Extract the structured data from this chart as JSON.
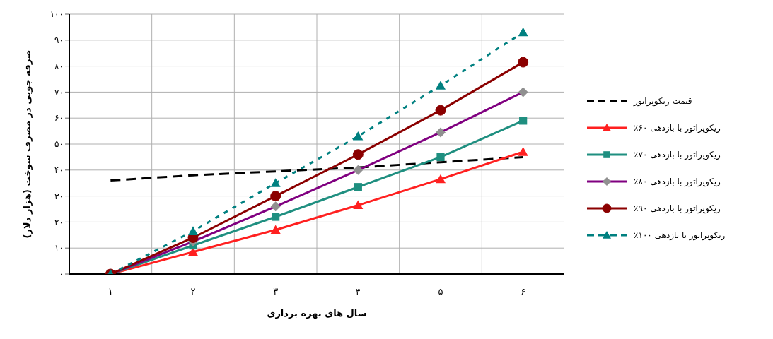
{
  "chart_data": {
    "type": "line",
    "xlabel": "سال های بهره برداری",
    "ylabel": "صرفه جویی در مصرف سوخت (هزار دلار)",
    "categories": [
      "۱",
      "۲",
      "۳",
      "۴",
      "۵",
      "۶"
    ],
    "ylim": [
      0,
      100
    ],
    "yticks": [
      {
        "value": 0,
        "label": "۰"
      },
      {
        "value": 10,
        "label": "۱۰"
      },
      {
        "value": 20,
        "label": "۲۰"
      },
      {
        "value": 30,
        "label": "۳۰"
      },
      {
        "value": 40,
        "label": "۴۰"
      },
      {
        "value": 50,
        "label": "۵۰"
      },
      {
        "value": 60,
        "label": "۶۰"
      },
      {
        "value": 70,
        "label": "۷۰"
      },
      {
        "value": 80,
        "label": "۸۰"
      },
      {
        "value": 90,
        "label": "۹۰"
      },
      {
        "value": 100,
        "label": "۱۰۰"
      }
    ],
    "grid": true,
    "legend": "right",
    "series": [
      {
        "name": "قیمت ریکوپراتور",
        "color": "#000000",
        "values": [
          36,
          38,
          39.5,
          41,
          43,
          45
        ],
        "marker": "none",
        "line_style": "dashed"
      },
      {
        "name": "ریکوپراتور با بازدهی ۶۰٪",
        "color": "#ff2020",
        "values": [
          0,
          8.5,
          17,
          26.5,
          36.5,
          47
        ],
        "marker": "triangle",
        "line_style": "solid"
      },
      {
        "name": "ریکوپراتور با بازدهی ۷۰٪",
        "color": "#1f8f80",
        "values": [
          0,
          11,
          22,
          33.5,
          45,
          59
        ],
        "marker": "square",
        "line_style": "solid"
      },
      {
        "name": "ریکوپراتور با بازدهی ۸۰٪",
        "color": "#800080",
        "values": [
          0,
          12.5,
          26,
          40,
          54.5,
          70
        ],
        "marker": "diamond",
        "line_style": "solid"
      },
      {
        "name": "ریکوپراتور با بازدهی ۹۰٪",
        "color": "#8b0000",
        "values": [
          0,
          14,
          30,
          46,
          63,
          81.5
        ],
        "marker": "circle",
        "line_style": "solid"
      },
      {
        "name": "ریکوپراتور با بازدهی ۱۰۰٪",
        "color": "#008080",
        "values": [
          0,
          16.5,
          35,
          53,
          72.5,
          93
        ],
        "marker": "triangle",
        "line_style": "dotted"
      }
    ]
  }
}
